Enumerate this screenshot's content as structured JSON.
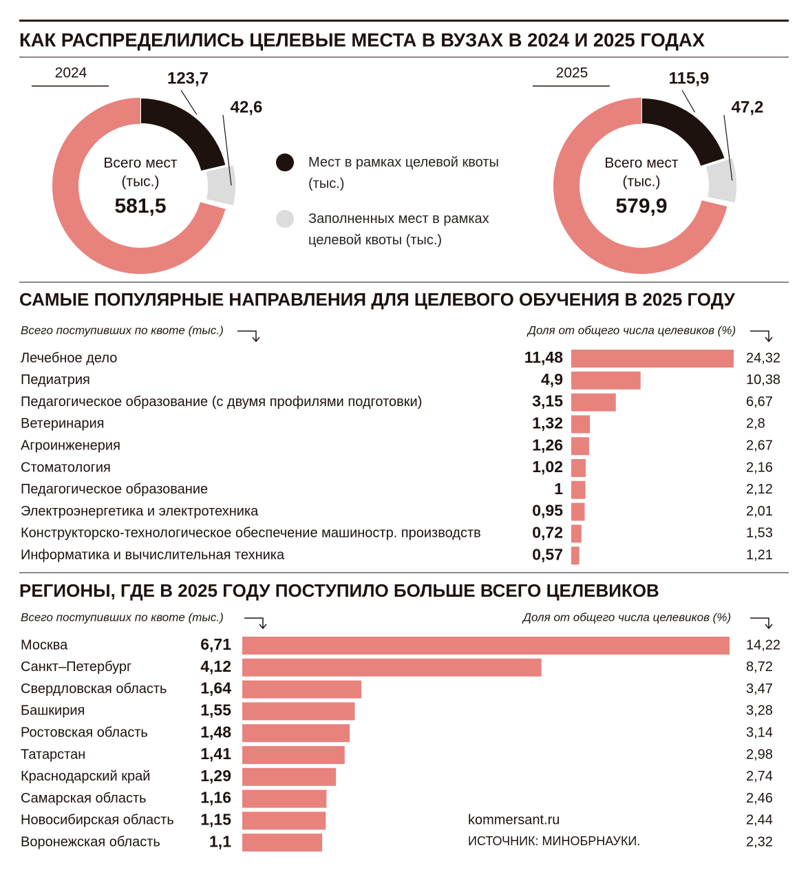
{
  "header": {
    "title": "КАК РАСПРЕДЕЛИЛИСЬ ЦЕЛЕВЫЕ МЕСТА В ВУЗАХ В 2024 И 2025 ГОДАХ"
  },
  "legend": [
    {
      "label": "Мест в рамках целевой квоты (тыс.)",
      "color": "#1e120e"
    },
    {
      "label": "Заполненных мест в рамках целевой квоты (тыс.)",
      "color": "#dcdcdc"
    }
  ],
  "chart_data": [
    {
      "type": "donut",
      "title": "2024",
      "center_label": [
        "Всего мест",
        "(тыс.)"
      ],
      "total": 581.5,
      "total_label": "581,5",
      "values": [
        123.7,
        42.6
      ],
      "value_labels": [
        "123,7",
        "42,6"
      ],
      "colors": [
        "#1e120e",
        "#dcdcdc"
      ],
      "rest_color": "#e8827d"
    },
    {
      "type": "donut",
      "title": "2025",
      "center_label": [
        "Всего мест",
        "(тыс.)"
      ],
      "total": 579.9,
      "total_label": "579,9",
      "values": [
        115.9,
        47.2
      ],
      "value_labels": [
        "115,9",
        "47,2"
      ],
      "colors": [
        "#1e120e",
        "#dcdcdc"
      ],
      "rest_color": "#e8827d"
    },
    {
      "type": "hbar",
      "title": "САМЫЕ ПОПУЛЯРНЫЕ НАПРАВЛЕНИЯ ДЛЯ ЦЕЛЕВОГО ОБУЧЕНИЯ В 2025 ГОДУ",
      "left_label": "Всего поступивших по квоте (тыс.)",
      "right_label": "Доля от общего числа целевиков (%)",
      "categories": [
        "Лечебное дело",
        "Педиатрия",
        "Педагогическое образование (с двумя профилями подготовки)",
        "Ветеринария",
        "Агроинженерия",
        "Стоматология",
        "Педагогическое образование",
        "Электроэнергетика и электротехника",
        "Конструкторско-технологическое обеспечение машиностр. производств",
        "Информатика и вычислительная техника"
      ],
      "values": [
        11.48,
        4.9,
        3.15,
        1.32,
        1.26,
        1.02,
        1,
        0.95,
        0.72,
        0.57
      ],
      "value_labels": [
        "11,48",
        "4,9",
        "3,15",
        "1,32",
        "1,26",
        "1,02",
        "1",
        "0,95",
        "0,72",
        "0,57"
      ],
      "shares": [
        24.32,
        10.38,
        6.67,
        2.8,
        2.67,
        2.16,
        2.12,
        2.01,
        1.53,
        1.21
      ],
      "share_labels": [
        "24,32",
        "10,38",
        "6,67",
        "2,8",
        "2,67",
        "2,16",
        "2,12",
        "2,01",
        "1,53",
        "1,21"
      ],
      "color": "#e8827d"
    },
    {
      "type": "hbar",
      "title": "РЕГИОНЫ, ГДЕ В 2025 ГОДУ ПОСТУПИЛО БОЛЬШЕ ВСЕГО ЦЕЛЕВИКОВ",
      "left_label": "Всего поступивших по квоте (тыс.)",
      "right_label": "Доля от общего числа целевиков (%)",
      "categories": [
        "Москва",
        "Санкт–Петербург",
        "Свердловская область",
        "Башкирия",
        "Ростовская область",
        "Татарстан",
        "Краснодарский край",
        "Самарская область",
        "Новосибирская область",
        "Воронежская область"
      ],
      "values": [
        6.71,
        4.12,
        1.64,
        1.55,
        1.48,
        1.41,
        1.29,
        1.16,
        1.15,
        1.1
      ],
      "value_labels": [
        "6,71",
        "4,12",
        "1,64",
        "1,55",
        "1,48",
        "1,41",
        "1,29",
        "1,16",
        "1,15",
        "1,1"
      ],
      "shares": [
        14.22,
        8.72,
        3.47,
        3.28,
        3.14,
        2.98,
        2.74,
        2.46,
        2.44,
        2.32
      ],
      "share_labels": [
        "14,22",
        "8,72",
        "3,47",
        "3,28",
        "3,14",
        "2,98",
        "2,74",
        "2,46",
        "2,44",
        "2,32"
      ],
      "color": "#e8827d"
    }
  ],
  "footer": {
    "site": "kommersant.ru",
    "source": "ИСТОЧНИК: МИНОБРНАУКИ."
  }
}
